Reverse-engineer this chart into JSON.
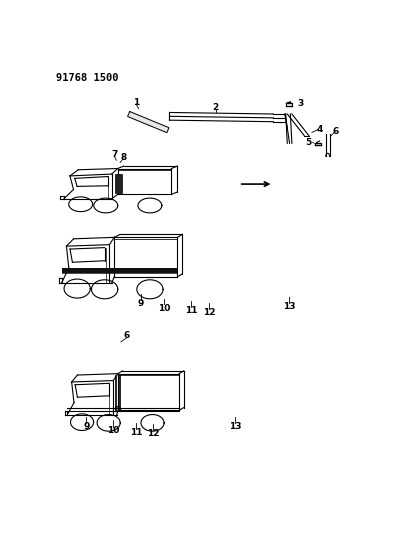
{
  "title": "91768 1500",
  "bg": "#ffffff",
  "lc": "#000000",
  "fig_w": 3.93,
  "fig_h": 5.33,
  "dpi": 100
}
